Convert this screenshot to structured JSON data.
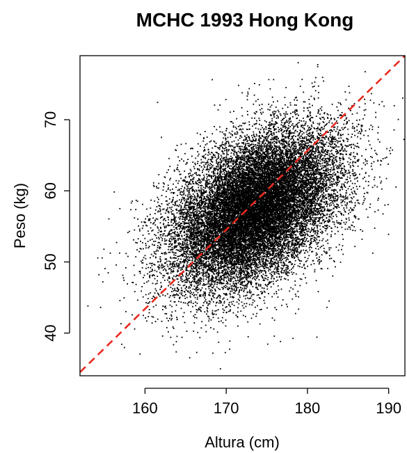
{
  "chart_data": {
    "type": "scatter",
    "title": "MCHC 1993 Hong Kong",
    "xlabel": "Altura (cm)",
    "ylabel": "Peso (kg)",
    "xlim": [
      152,
      192
    ],
    "ylim": [
      34,
      79
    ],
    "x_ticks": [
      160,
      170,
      180,
      190
    ],
    "y_ticks": [
      40,
      50,
      60,
      70
    ],
    "grid": false,
    "point_color": "#000000",
    "series": [
      {
        "distribution": "bivariate_normal",
        "n_points": 20000,
        "x_mean": 173.5,
        "x_sd": 5.2,
        "y_mean": 57.5,
        "y_sd": 5.6,
        "correlation": 0.45
      }
    ],
    "reference_line": {
      "style": "dashed",
      "color": "#e8291f",
      "x": [
        152,
        192
      ],
      "y": [
        34.5,
        79
      ]
    }
  }
}
